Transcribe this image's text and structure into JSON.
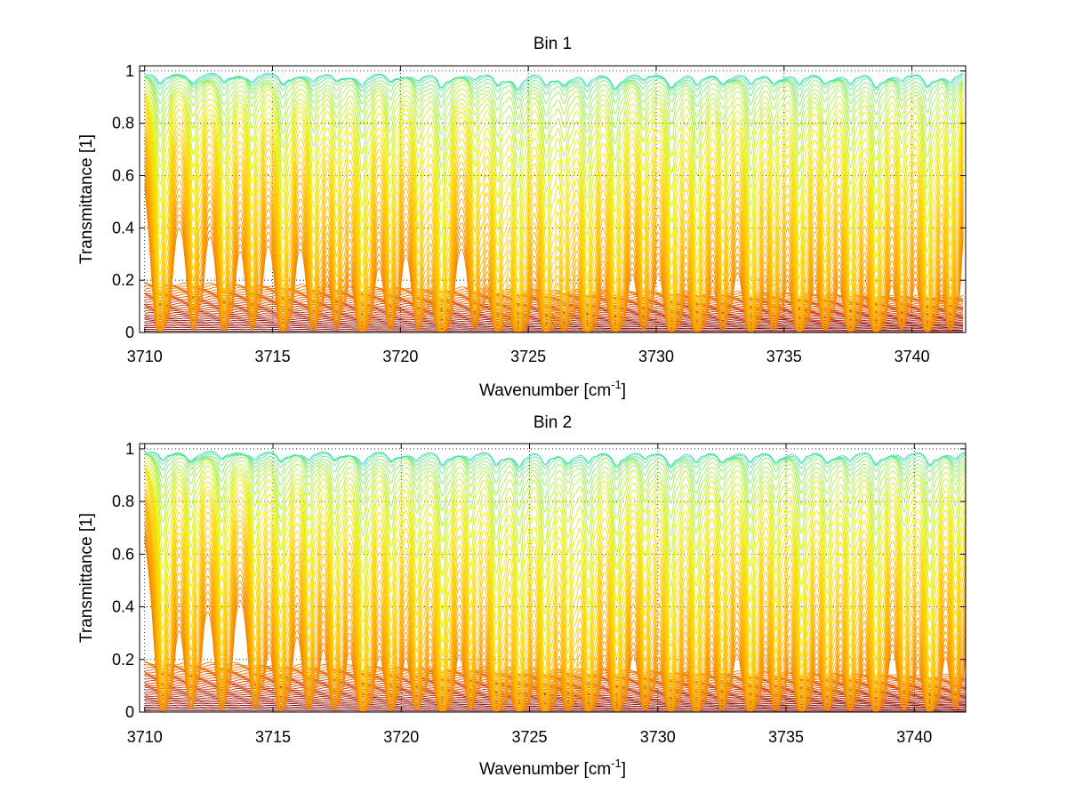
{
  "chart_data": [
    {
      "type": "line",
      "title": "Bin 1",
      "xlabel": "Wavenumber [cm",
      "xlabel_sup": "-1",
      "xlabel_end": "]",
      "ylabel": "Transmittance [1]",
      "xlim": [
        3709.8,
        3742.1
      ],
      "ylim": [
        0,
        1.02
      ],
      "xticks": [
        3710,
        3715,
        3720,
        3725,
        3730,
        3735,
        3740
      ],
      "xtick_labels": [
        "3710",
        "3715",
        "3720",
        "3725",
        "3730",
        "3735",
        "3740"
      ],
      "yticks": [
        0,
        0.2,
        0.4,
        0.6,
        0.8,
        1
      ],
      "ytick_labels": [
        "0",
        "0.2",
        "0.4",
        "0.6",
        "0.8",
        "1"
      ],
      "grid": true,
      "x_range": [
        3710,
        3742
      ],
      "line_centers": [
        3710.6,
        3711.9,
        3713.1,
        3714.2,
        3715.4,
        3716.6,
        3717.5,
        3718.5,
        3719.6,
        3720.7,
        3721.6,
        3722.9,
        3723.8,
        3724.6,
        3725.7,
        3726.4,
        3727.3,
        3728.4,
        3729.5,
        3730.6,
        3731.6,
        3732.6,
        3733.7,
        3734.6,
        3735.6,
        3736.6,
        3737.6,
        3738.6,
        3739.6,
        3740.6,
        3741.5
      ],
      "line_strengths": [
        0.8,
        0.5,
        0.6,
        0.5,
        0.7,
        0.55,
        0.45,
        0.8,
        0.5,
        0.5,
        0.95,
        0.45,
        0.7,
        0.95,
        0.8,
        0.55,
        0.9,
        0.85,
        0.5,
        0.8,
        0.85,
        0.5,
        0.8,
        0.5,
        0.8,
        0.55,
        0.75,
        0.85,
        0.5,
        0.8,
        0.55
      ],
      "series_count": 60,
      "series_colormap": [
        "#7a0000",
        "#a01000",
        "#c02c00",
        "#d84a00",
        "#ec6e00",
        "#f79000",
        "#ffb000",
        "#ffd000",
        "#e8f000",
        "#a6f04a",
        "#40e0c0"
      ]
    },
    {
      "type": "line",
      "title": "Bin 2",
      "xlabel": "Wavenumber [cm",
      "xlabel_sup": "-1",
      "xlabel_end": "]",
      "ylabel": "Transmittance [1]",
      "xlim": [
        3709.8,
        3742.0
      ],
      "ylim": [
        0,
        1.02
      ],
      "xticks": [
        3710,
        3715,
        3720,
        3725,
        3730,
        3735,
        3740
      ],
      "xtick_labels": [
        "3710",
        "3715",
        "3720",
        "3725",
        "3730",
        "3735",
        "3740"
      ],
      "yticks": [
        0,
        0.2,
        0.4,
        0.6,
        0.8,
        1
      ],
      "ytick_labels": [
        "0",
        "0.2",
        "0.4",
        "0.6",
        "0.8",
        "1"
      ],
      "grid": true,
      "x_range": [
        3710,
        3742
      ],
      "line_centers": [
        3710.7,
        3711.8,
        3713.0,
        3714.3,
        3715.3,
        3716.4,
        3717.4,
        3718.5,
        3719.6,
        3720.6,
        3721.6,
        3722.7,
        3723.7,
        3724.6,
        3725.6,
        3726.5,
        3727.3,
        3728.4,
        3729.5,
        3730.5,
        3731.5,
        3732.5,
        3733.6,
        3734.6,
        3735.6,
        3736.6,
        3737.5,
        3738.5,
        3739.6,
        3740.6,
        3741.6
      ],
      "line_strengths": [
        0.7,
        0.5,
        0.55,
        0.5,
        0.65,
        0.5,
        0.55,
        0.85,
        0.6,
        0.55,
        0.9,
        0.5,
        0.85,
        0.9,
        0.9,
        0.6,
        0.8,
        0.8,
        0.55,
        0.8,
        0.8,
        0.55,
        0.8,
        0.55,
        0.8,
        0.6,
        0.6,
        0.8,
        0.55,
        0.85,
        0.5
      ],
      "series_count": 60,
      "series_colormap": [
        "#7a0000",
        "#a01000",
        "#c02c00",
        "#d84a00",
        "#ec6e00",
        "#f79000",
        "#ffb000",
        "#ffd000",
        "#e8f000",
        "#a6f04a",
        "#40e0c0"
      ]
    }
  ]
}
